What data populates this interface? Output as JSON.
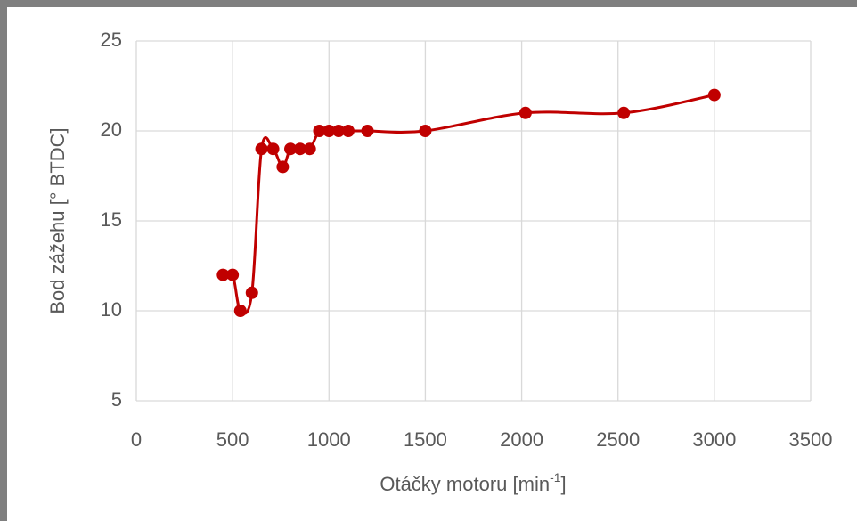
{
  "chart_data": {
    "type": "scatter",
    "y_label": "Bod zážehu [° BTDC]",
    "x_label_parts": [
      "Otáčky motoru [min",
      "-1",
      "]"
    ],
    "series": [
      {
        "color": "#c00000",
        "x": [
          450,
          500,
          540,
          600,
          650,
          710,
          760,
          800,
          850,
          900,
          950,
          1000,
          1050,
          1100,
          1200,
          1500,
          2020,
          2530,
          3000
        ],
        "values": [
          12,
          12,
          10,
          11,
          19,
          19,
          18,
          19,
          19,
          19,
          20,
          20,
          20,
          20,
          20,
          20,
          21,
          21,
          22
        ]
      }
    ],
    "xlim": [
      0,
      3500
    ],
    "xticks": [
      0,
      500,
      1000,
      1500,
      2000,
      2500,
      3000,
      3500
    ],
    "ylim": [
      5,
      25
    ],
    "yticks": [
      5,
      10,
      15,
      20,
      25
    ],
    "grid": true,
    "smooth": true
  }
}
